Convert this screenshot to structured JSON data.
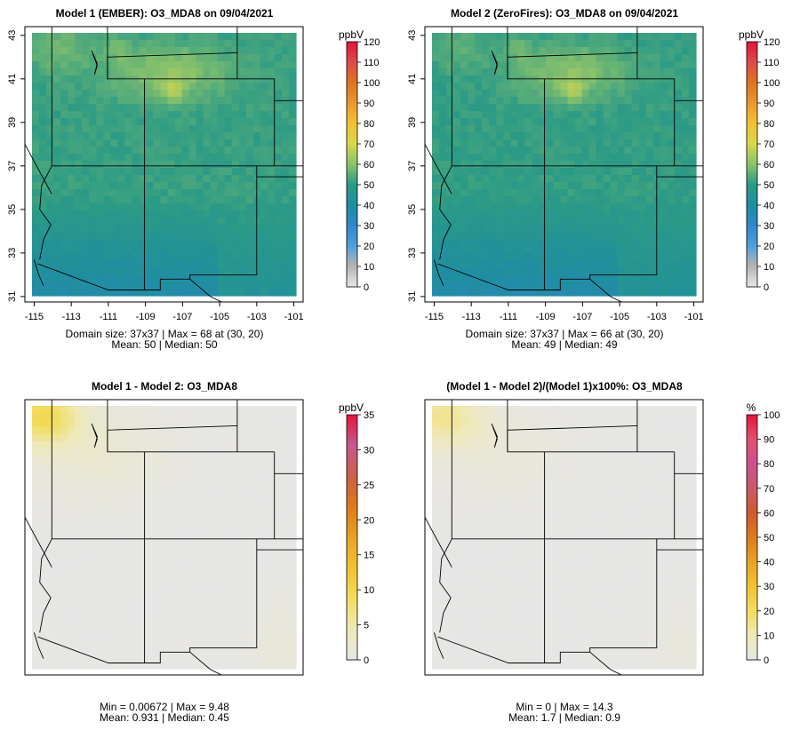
{
  "panels": [
    {
      "title": "Model 1 (EMBER): O3_MDA8 on 09/04/2021",
      "stats_line1": "Domain size: 37x37 | Max = 68 at (30, 20)",
      "stats_line2": "Mean: 50 |  Median: 50",
      "unit": "ppbV",
      "colorbar_ticks": [
        "0",
        "10",
        "20",
        "30",
        "40",
        "50",
        "60",
        "70",
        "80",
        "90",
        "100",
        "110",
        "120"
      ],
      "colorbar_range": [
        0,
        120
      ],
      "show_axes": true,
      "x_ticks": [
        "-115",
        "-113",
        "-111",
        "-109",
        "-107",
        "-105",
        "-103",
        "-101"
      ],
      "y_ticks": [
        "31",
        "33",
        "35",
        "37",
        "39",
        "41",
        "43"
      ],
      "field": "model1"
    },
    {
      "title": "Model 2 (ZeroFires): O3_MDA8 on 09/04/2021",
      "stats_line1": "Domain size: 37x37 | Max = 66 at (30, 20)",
      "stats_line2": "Mean: 49 |  Median: 49",
      "unit": "ppbV",
      "colorbar_ticks": [
        "0",
        "10",
        "20",
        "30",
        "40",
        "50",
        "60",
        "70",
        "80",
        "90",
        "100",
        "110",
        "120"
      ],
      "colorbar_range": [
        0,
        120
      ],
      "show_axes": true,
      "x_ticks": [
        "-115",
        "-113",
        "-111",
        "-109",
        "-107",
        "-105",
        "-103",
        "-101"
      ],
      "y_ticks": [
        "31",
        "33",
        "35",
        "37",
        "39",
        "41",
        "43"
      ],
      "field": "model2"
    },
    {
      "title": "Model 1 - Model 2: O3_MDA8",
      "stats_line1": "Min = 0.00672 | Max = 9.48",
      "stats_line2": "Mean: 0.931 |  Median: 0.45",
      "unit": "ppbV",
      "colorbar_ticks": [
        "0",
        "5",
        "10",
        "15",
        "20",
        "25",
        "30",
        "35"
      ],
      "colorbar_range": [
        0,
        35
      ],
      "show_axes": false,
      "x_ticks": [],
      "y_ticks": [],
      "field": "diff"
    },
    {
      "title": "(Model 1 - Model 2)/(Model 1)x100%: O3_MDA8",
      "stats_line1": "Min = 0 | Max = 14.3",
      "stats_line2": "Mean: 1.7 |  Median: 0.9",
      "unit": "%",
      "colorbar_ticks": [
        "0",
        "10",
        "20",
        "30",
        "40",
        "50",
        "60",
        "70",
        "80",
        "90",
        "100"
      ],
      "colorbar_range": [
        0,
        100
      ],
      "show_axes": false,
      "x_ticks": [],
      "y_ticks": [],
      "field": "pct"
    }
  ],
  "colors": {
    "model_scale": [
      "#e6e6e6",
      "#b3b3b3",
      "#4f9fdc",
      "#2f86c9",
      "#1f8ea0",
      "#2b9a86",
      "#8cc36a",
      "#d7d84b",
      "#f1c232",
      "#e8962f",
      "#e0721f",
      "#d94a4a",
      "#e8123a"
    ],
    "diff_scale": [
      "#e6e6e6",
      "#ede9b8",
      "#f2dc5a",
      "#f1c232",
      "#e7a224",
      "#dd7a1a",
      "#cc5f4a",
      "#c45a90",
      "#e8123a"
    ],
    "pct_scale": [
      "#e6e6e6",
      "#efe9b5",
      "#f2dc5a",
      "#f1c232",
      "#e7a224",
      "#dd7a1a",
      "#d05a30",
      "#c85a6a",
      "#cf5090",
      "#e05070",
      "#e8123a"
    ],
    "border": "#000000"
  }
}
